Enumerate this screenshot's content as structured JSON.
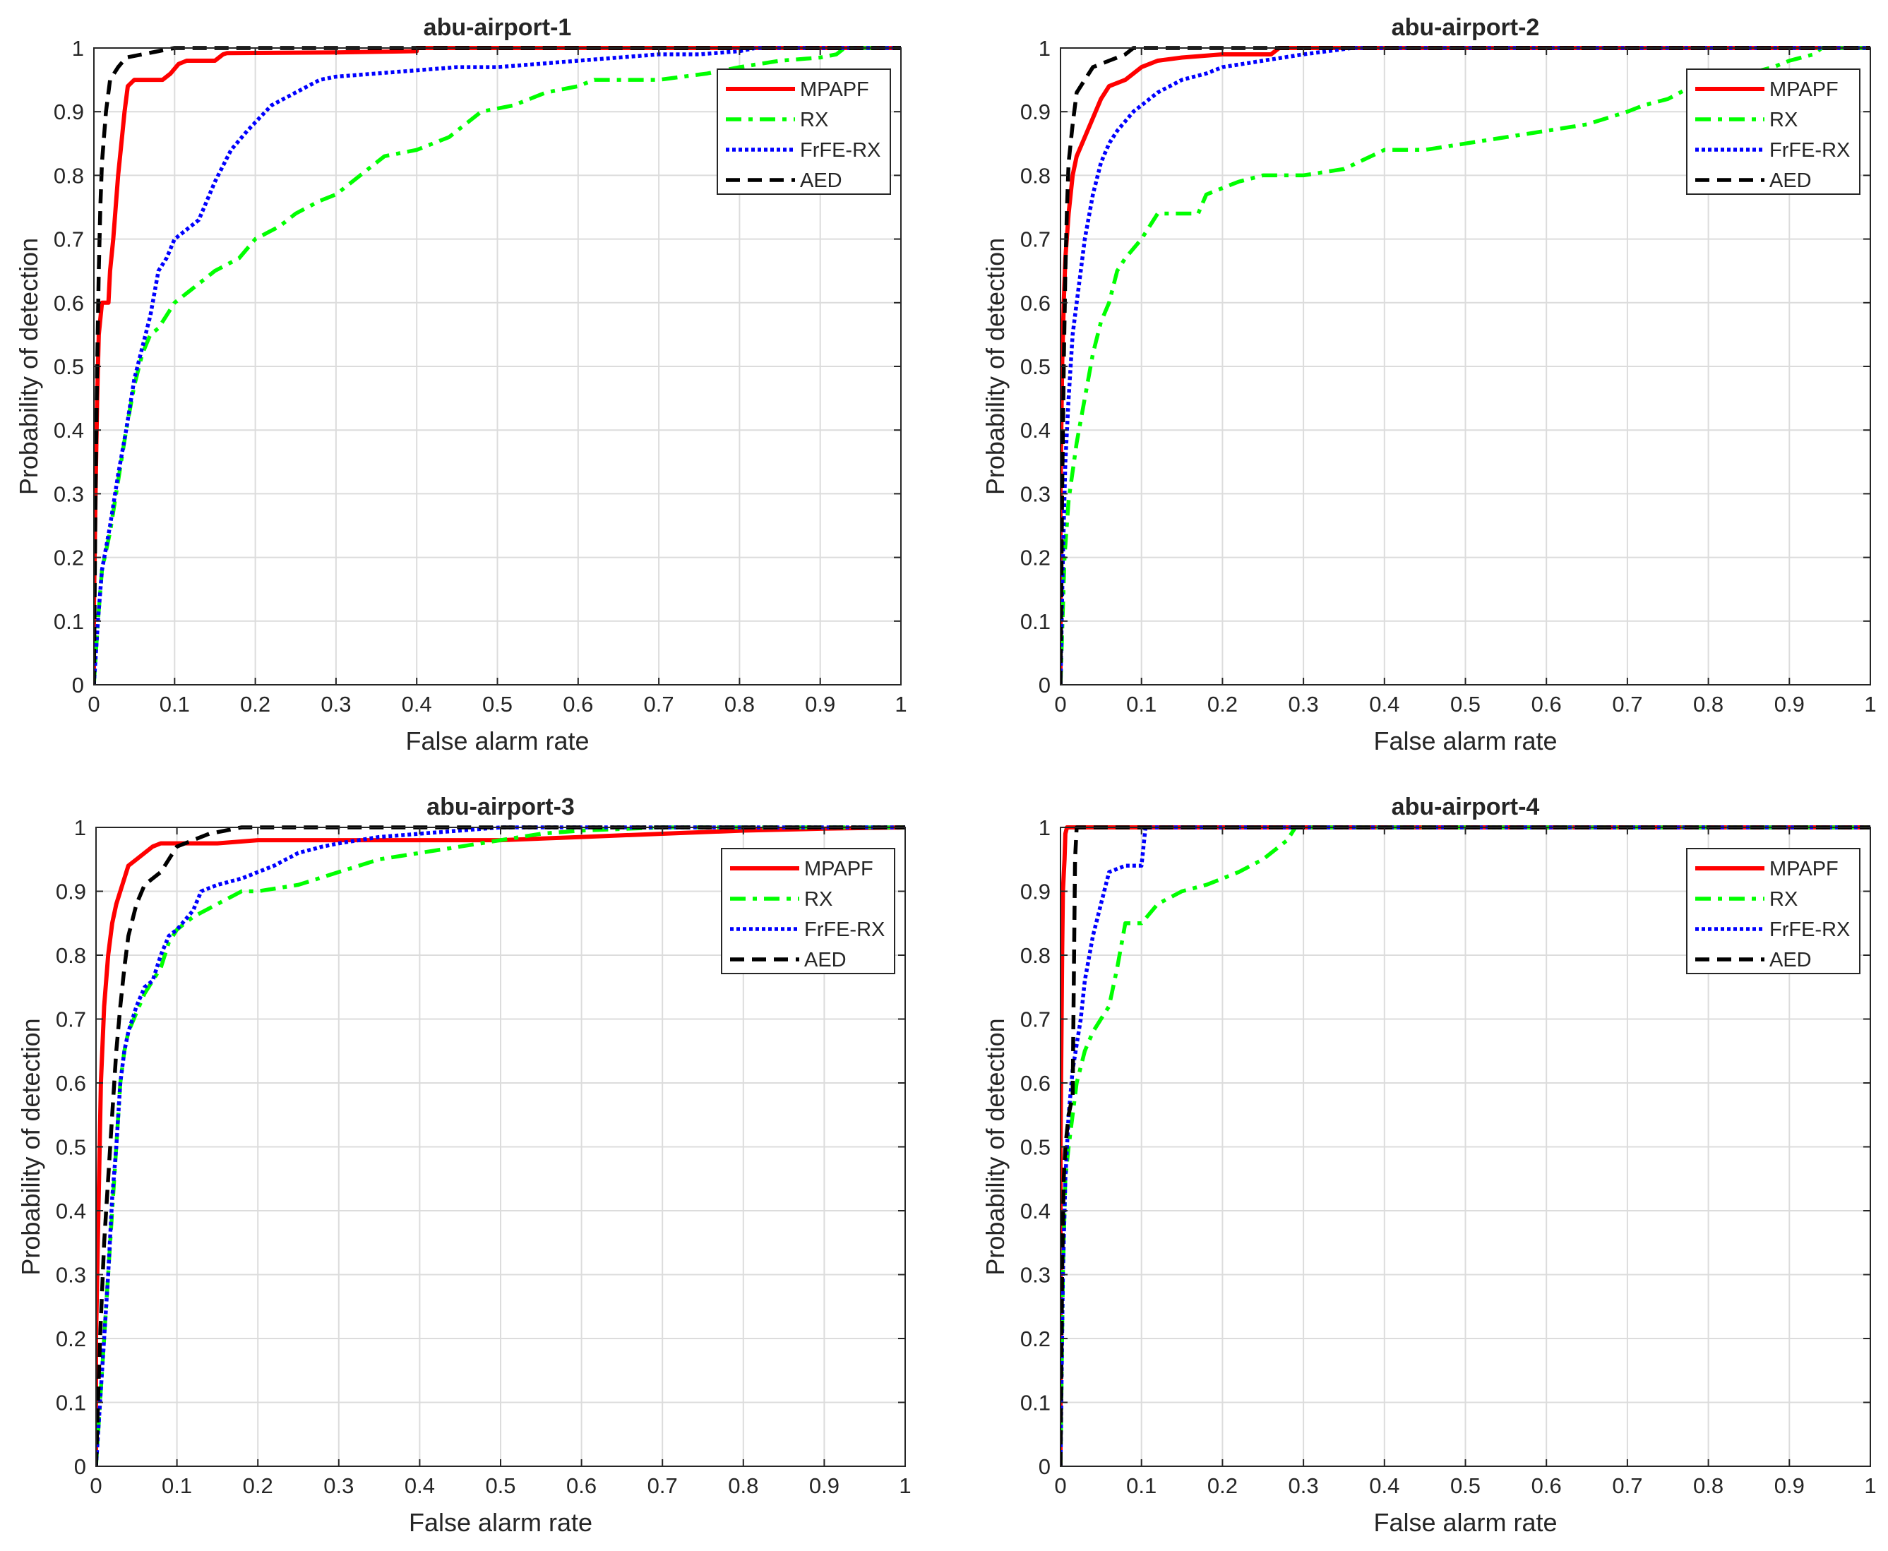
{
  "chart_data": [
    {
      "type": "line",
      "title": "abu-airport-1",
      "xlabel": "False alarm rate",
      "ylabel": "Probability of detection",
      "xlim": [
        0,
        1
      ],
      "ylim": [
        0,
        1
      ],
      "xticks": [
        "0",
        "0.1",
        "0.2",
        "0.3",
        "0.4",
        "0.5",
        "0.6",
        "0.7",
        "0.8",
        "0.9",
        "1"
      ],
      "yticks": [
        "0",
        "0.1",
        "0.2",
        "0.3",
        "0.4",
        "0.5",
        "0.6",
        "0.7",
        "0.8",
        "0.9",
        "1"
      ],
      "grid": true,
      "legend": "top-right",
      "series": [
        {
          "name": "MPAPF",
          "color": "#ff0000",
          "style": "solid",
          "x": [
            0,
            0,
            0.002,
            0.004,
            0.006,
            0.01,
            0.018,
            0.02,
            0.024,
            0.03,
            0.034,
            0.038,
            0.042,
            0.046,
            0.05,
            0.06,
            0.085,
            0.095,
            0.105,
            0.115,
            0.15,
            0.16,
            0.165,
            0.3,
            0.4,
            0.4,
            1
          ],
          "y": [
            0,
            0.12,
            0.3,
            0.45,
            0.55,
            0.6,
            0.6,
            0.65,
            0.7,
            0.8,
            0.85,
            0.9,
            0.94,
            0.945,
            0.95,
            0.95,
            0.95,
            0.96,
            0.975,
            0.98,
            0.98,
            0.99,
            0.992,
            0.993,
            0.995,
            1,
            1
          ]
        },
        {
          "name": "RX",
          "color": "#00ff00",
          "style": "dashdot",
          "x": [
            0,
            0.005,
            0.01,
            0.02,
            0.03,
            0.04,
            0.05,
            0.06,
            0.07,
            0.08,
            0.09,
            0.1,
            0.12,
            0.15,
            0.18,
            0.2,
            0.23,
            0.25,
            0.28,
            0.3,
            0.33,
            0.36,
            0.4,
            0.44,
            0.48,
            0.52,
            0.56,
            0.6,
            0.62,
            0.65,
            0.7,
            0.76,
            0.8,
            0.85,
            0.9,
            0.92,
            0.93,
            1
          ],
          "y": [
            0,
            0.1,
            0.18,
            0.24,
            0.32,
            0.4,
            0.47,
            0.52,
            0.55,
            0.56,
            0.58,
            0.6,
            0.62,
            0.65,
            0.67,
            0.7,
            0.72,
            0.74,
            0.76,
            0.77,
            0.8,
            0.83,
            0.84,
            0.86,
            0.9,
            0.91,
            0.93,
            0.94,
            0.95,
            0.95,
            0.95,
            0.96,
            0.97,
            0.98,
            0.985,
            0.99,
            1,
            1
          ]
        },
        {
          "name": "FrFE-RX",
          "color": "#0000ff",
          "style": "dotted",
          "x": [
            0,
            0.005,
            0.01,
            0.02,
            0.03,
            0.04,
            0.05,
            0.06,
            0.07,
            0.08,
            0.09,
            0.1,
            0.11,
            0.13,
            0.15,
            0.17,
            0.19,
            0.22,
            0.25,
            0.28,
            0.3,
            0.35,
            0.4,
            0.45,
            0.5,
            0.55,
            0.6,
            0.65,
            0.7,
            0.75,
            0.8,
            0.82,
            1
          ],
          "y": [
            0,
            0.1,
            0.18,
            0.25,
            0.33,
            0.4,
            0.48,
            0.53,
            0.58,
            0.65,
            0.67,
            0.7,
            0.71,
            0.73,
            0.79,
            0.84,
            0.87,
            0.91,
            0.93,
            0.95,
            0.955,
            0.96,
            0.965,
            0.97,
            0.97,
            0.975,
            0.98,
            0.985,
            0.99,
            0.99,
            0.995,
            1,
            1
          ]
        },
        {
          "name": "AED",
          "color": "#000000",
          "style": "dashed",
          "x": [
            0,
            0.002,
            0.004,
            0.006,
            0.008,
            0.01,
            0.015,
            0.02,
            0.03,
            0.04,
            0.06,
            0.08,
            0.1,
            0.14,
            1
          ],
          "y": [
            0,
            0.3,
            0.5,
            0.65,
            0.75,
            0.82,
            0.9,
            0.95,
            0.97,
            0.985,
            0.99,
            0.995,
            1,
            1,
            1
          ]
        }
      ]
    },
    {
      "type": "line",
      "title": "abu-airport-2",
      "xlabel": "False alarm rate",
      "ylabel": "Probability of detection",
      "xlim": [
        0,
        1
      ],
      "ylim": [
        0,
        1
      ],
      "xticks": [
        "0",
        "0.1",
        "0.2",
        "0.3",
        "0.4",
        "0.5",
        "0.6",
        "0.7",
        "0.8",
        "0.9",
        "1"
      ],
      "yticks": [
        "0",
        "0.1",
        "0.2",
        "0.3",
        "0.4",
        "0.5",
        "0.6",
        "0.7",
        "0.8",
        "0.9",
        "1"
      ],
      "grid": true,
      "legend": "top-right",
      "series": [
        {
          "name": "MPAPF",
          "color": "#ff0000",
          "style": "solid",
          "x": [
            0,
            0,
            0.002,
            0.004,
            0.006,
            0.01,
            0.015,
            0.02,
            0.03,
            0.04,
            0.05,
            0.06,
            0.08,
            0.1,
            0.12,
            0.15,
            0.2,
            0.26,
            0.27,
            1
          ],
          "y": [
            0,
            0.3,
            0.5,
            0.6,
            0.67,
            0.74,
            0.8,
            0.83,
            0.86,
            0.89,
            0.92,
            0.94,
            0.95,
            0.97,
            0.98,
            0.985,
            0.99,
            0.99,
            1,
            1
          ]
        },
        {
          "name": "RX",
          "color": "#00ff00",
          "style": "dashdot",
          "x": [
            0,
            0.005,
            0.01,
            0.02,
            0.03,
            0.04,
            0.05,
            0.06,
            0.07,
            0.08,
            0.1,
            0.12,
            0.15,
            0.17,
            0.18,
            0.2,
            0.22,
            0.25,
            0.28,
            0.3,
            0.35,
            0.4,
            0.45,
            0.5,
            0.55,
            0.6,
            0.65,
            0.7,
            0.72,
            0.75,
            0.78,
            0.8,
            0.85,
            0.88,
            0.9,
            0.93,
            0.94,
            1
          ],
          "y": [
            0,
            0.2,
            0.29,
            0.38,
            0.45,
            0.52,
            0.57,
            0.6,
            0.65,
            0.67,
            0.7,
            0.74,
            0.74,
            0.74,
            0.77,
            0.78,
            0.79,
            0.8,
            0.8,
            0.8,
            0.81,
            0.84,
            0.84,
            0.85,
            0.86,
            0.87,
            0.88,
            0.9,
            0.91,
            0.92,
            0.94,
            0.95,
            0.96,
            0.97,
            0.98,
            0.99,
            1,
            1
          ]
        },
        {
          "name": "FrFE-RX",
          "color": "#0000ff",
          "style": "dotted",
          "x": [
            0,
            0.003,
            0.006,
            0.01,
            0.015,
            0.02,
            0.025,
            0.03,
            0.04,
            0.05,
            0.06,
            0.07,
            0.09,
            0.1,
            0.12,
            0.15,
            0.18,
            0.2,
            0.25,
            0.3,
            0.33,
            0.36,
            1
          ],
          "y": [
            0,
            0.2,
            0.35,
            0.45,
            0.55,
            0.6,
            0.65,
            0.7,
            0.77,
            0.82,
            0.85,
            0.87,
            0.9,
            0.91,
            0.93,
            0.95,
            0.96,
            0.97,
            0.98,
            0.99,
            0.995,
            1,
            1
          ]
        },
        {
          "name": "AED",
          "color": "#000000",
          "style": "dashed",
          "x": [
            0,
            0.002,
            0.004,
            0.006,
            0.008,
            0.01,
            0.015,
            0.02,
            0.03,
            0.04,
            0.06,
            0.08,
            0.09,
            1
          ],
          "y": [
            0,
            0.3,
            0.5,
            0.65,
            0.75,
            0.82,
            0.88,
            0.93,
            0.95,
            0.97,
            0.98,
            0.99,
            1,
            1
          ]
        }
      ]
    },
    {
      "type": "line",
      "title": "abu-airport-3",
      "xlabel": "False alarm rate",
      "ylabel": "Probability of detection",
      "xlim": [
        0,
        1
      ],
      "ylim": [
        0,
        1
      ],
      "xticks": [
        "0",
        "0.1",
        "0.2",
        "0.3",
        "0.4",
        "0.5",
        "0.6",
        "0.7",
        "0.8",
        "0.9",
        "1"
      ],
      "yticks": [
        "0",
        "0.1",
        "0.2",
        "0.3",
        "0.4",
        "0.5",
        "0.6",
        "0.7",
        "0.8",
        "0.9",
        "1"
      ],
      "grid": true,
      "legend": "top-right",
      "series": [
        {
          "name": "MPAPF",
          "color": "#ff0000",
          "style": "solid",
          "x": [
            0,
            0,
            0.003,
            0.006,
            0.01,
            0.015,
            0.02,
            0.025,
            0.03,
            0.035,
            0.04,
            0.05,
            0.06,
            0.07,
            0.08,
            0.1,
            0.12,
            0.15,
            0.2,
            0.3,
            0.4,
            0.5,
            0.6,
            0.7,
            0.8,
            0.9,
            1
          ],
          "y": [
            0,
            0.2,
            0.4,
            0.6,
            0.72,
            0.8,
            0.85,
            0.88,
            0.9,
            0.92,
            0.94,
            0.95,
            0.96,
            0.97,
            0.975,
            0.975,
            0.975,
            0.975,
            0.98,
            0.98,
            0.98,
            0.98,
            0.985,
            0.99,
            0.995,
            0.998,
            1
          ]
        },
        {
          "name": "RX",
          "color": "#00ff00",
          "style": "dashdot",
          "x": [
            0,
            0.005,
            0.01,
            0.015,
            0.02,
            0.025,
            0.03,
            0.035,
            0.04,
            0.05,
            0.06,
            0.07,
            0.08,
            0.09,
            0.1,
            0.12,
            0.15,
            0.18,
            0.2,
            0.25,
            0.3,
            0.35,
            0.4,
            0.45,
            0.5,
            0.55,
            0.6,
            0.7,
            0.8,
            1
          ],
          "y": [
            0,
            0.1,
            0.2,
            0.3,
            0.4,
            0.5,
            0.6,
            0.65,
            0.68,
            0.71,
            0.74,
            0.76,
            0.78,
            0.82,
            0.84,
            0.86,
            0.88,
            0.9,
            0.9,
            0.91,
            0.93,
            0.95,
            0.96,
            0.97,
            0.98,
            0.99,
            0.995,
            1,
            1,
            1
          ]
        },
        {
          "name": "FrFE-RX",
          "color": "#0000ff",
          "style": "dotted",
          "x": [
            0,
            0.005,
            0.01,
            0.015,
            0.02,
            0.025,
            0.03,
            0.035,
            0.04,
            0.05,
            0.06,
            0.07,
            0.08,
            0.09,
            0.1,
            0.12,
            0.13,
            0.15,
            0.18,
            0.2,
            0.22,
            0.25,
            0.28,
            0.3,
            0.35,
            0.4,
            0.45,
            0.5,
            1
          ],
          "y": [
            0,
            0.1,
            0.2,
            0.3,
            0.42,
            0.5,
            0.6,
            0.65,
            0.68,
            0.72,
            0.75,
            0.76,
            0.8,
            0.83,
            0.84,
            0.87,
            0.9,
            0.91,
            0.92,
            0.93,
            0.94,
            0.96,
            0.97,
            0.975,
            0.985,
            0.99,
            0.995,
            1,
            1
          ]
        },
        {
          "name": "AED",
          "color": "#000000",
          "style": "dashed",
          "x": [
            0,
            0.005,
            0.01,
            0.015,
            0.02,
            0.025,
            0.03,
            0.035,
            0.04,
            0.05,
            0.06,
            0.07,
            0.08,
            0.09,
            0.1,
            0.12,
            0.14,
            0.16,
            0.18,
            0.2,
            0.3,
            1
          ],
          "y": [
            0,
            0.2,
            0.35,
            0.45,
            0.55,
            0.65,
            0.72,
            0.78,
            0.83,
            0.88,
            0.91,
            0.92,
            0.93,
            0.95,
            0.97,
            0.98,
            0.99,
            0.995,
            1,
            1,
            1,
            1
          ]
        }
      ]
    },
    {
      "type": "line",
      "title": "abu-airport-4",
      "xlabel": "False alarm rate",
      "ylabel": "Probability of detection",
      "xlim": [
        0,
        1
      ],
      "ylim": [
        0,
        1
      ],
      "xticks": [
        "0",
        "0.1",
        "0.2",
        "0.3",
        "0.4",
        "0.5",
        "0.6",
        "0.7",
        "0.8",
        "0.9",
        "1"
      ],
      "yticks": [
        "0",
        "0.1",
        "0.2",
        "0.3",
        "0.4",
        "0.5",
        "0.6",
        "0.7",
        "0.8",
        "0.9",
        "1"
      ],
      "grid": true,
      "legend": "top-right",
      "series": [
        {
          "name": "MPAPF",
          "color": "#ff0000",
          "style": "solid",
          "x": [
            0,
            0,
            0.002,
            0.003,
            0.005,
            0.006,
            0.008,
            1
          ],
          "y": [
            0,
            0.5,
            0.8,
            0.9,
            0.95,
            0.99,
            1,
            1
          ]
        },
        {
          "name": "RX",
          "color": "#00ff00",
          "style": "dashdot",
          "x": [
            0,
            0.003,
            0.006,
            0.01,
            0.015,
            0.02,
            0.03,
            0.04,
            0.05,
            0.06,
            0.07,
            0.08,
            0.09,
            0.1,
            0.12,
            0.15,
            0.18,
            0.2,
            0.22,
            0.25,
            0.27,
            0.28,
            0.29,
            1
          ],
          "y": [
            0,
            0.3,
            0.45,
            0.5,
            0.55,
            0.6,
            0.65,
            0.68,
            0.7,
            0.72,
            0.78,
            0.85,
            0.85,
            0.85,
            0.88,
            0.9,
            0.91,
            0.92,
            0.93,
            0.95,
            0.97,
            0.98,
            1,
            1
          ]
        },
        {
          "name": "FrFE-RX",
          "color": "#0000ff",
          "style": "dotted",
          "x": [
            0,
            0.003,
            0.006,
            0.01,
            0.015,
            0.02,
            0.025,
            0.03,
            0.04,
            0.05,
            0.06,
            0.08,
            0.1,
            0.105,
            1
          ],
          "y": [
            0,
            0.3,
            0.45,
            0.55,
            0.62,
            0.66,
            0.7,
            0.76,
            0.83,
            0.88,
            0.93,
            0.94,
            0.94,
            1,
            1
          ]
        },
        {
          "name": "AED",
          "color": "#000000",
          "style": "dashed",
          "x": [
            0,
            0.002,
            0.004,
            0.006,
            0.01,
            0.015,
            0.018,
            0.02,
            1
          ],
          "y": [
            0,
            0.3,
            0.45,
            0.5,
            0.55,
            0.58,
            0.95,
            1,
            1
          ]
        }
      ]
    }
  ]
}
